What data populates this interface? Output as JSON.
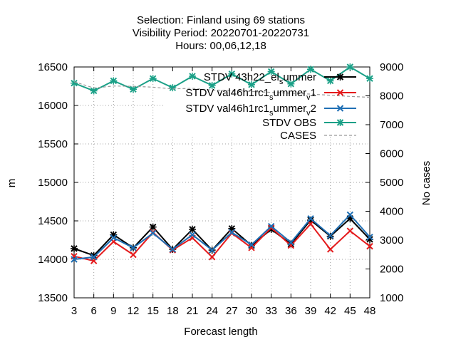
{
  "chart_data": {
    "type": "line",
    "title_lines": [
      "Selection: Finland using    69 stations",
      "Visibility   Period: 20220701-20220731",
      "Hours: 00,06,12,18"
    ],
    "xlabel": "Forecast length",
    "ylabel": "m",
    "y2label": "No cases",
    "x": [
      3,
      6,
      9,
      12,
      15,
      18,
      21,
      24,
      27,
      30,
      33,
      36,
      39,
      42,
      45,
      48
    ],
    "xlim": [
      3,
      48
    ],
    "ylim": [
      13500,
      16500
    ],
    "y2lim": [
      1000,
      9000
    ],
    "yticks": [
      13500,
      14000,
      14500,
      15000,
      15500,
      16000,
      16500
    ],
    "y2ticks": [
      1000,
      2000,
      3000,
      4000,
      5000,
      6000,
      7000,
      8000,
      9000
    ],
    "grid": true,
    "legend_position": "top-right",
    "series": [
      {
        "name": "STDV 43h22_el_summer",
        "legend": {
          "base": "STDV 43h22_el",
          "sub": "s",
          "rest": "ummer",
          "sub2": "",
          "rest2": ""
        },
        "color": "#000000",
        "marker": "star",
        "axis": "y",
        "values": [
          14140,
          14050,
          14320,
          14150,
          14420,
          14130,
          14390,
          14120,
          14400,
          14180,
          14390,
          14200,
          14510,
          14300,
          14530,
          14260
        ]
      },
      {
        "name": "STDV val46h1rc1_summer_v1",
        "legend": {
          "base": "STDV val46h1rc1",
          "sub": "s",
          "rest": "ummer",
          "sub2": "v",
          "rest2": "1"
        },
        "color": "#e41a1c",
        "marker": "x",
        "axis": "y",
        "values": [
          14040,
          13980,
          14230,
          14060,
          14350,
          14120,
          14280,
          14030,
          14340,
          14150,
          14410,
          14180,
          14460,
          14130,
          14370,
          14170
        ]
      },
      {
        "name": "STDV val46h1rc1_summer_v2",
        "legend": {
          "base": "STDV val46h1rc1",
          "sub": "s",
          "rest": "ummer",
          "sub2": "v",
          "rest2": "2"
        },
        "color": "#1f6fb4",
        "marker": "x",
        "axis": "y",
        "values": [
          14000,
          14030,
          14280,
          14150,
          14340,
          14130,
          14320,
          14120,
          14350,
          14190,
          14430,
          14220,
          14530,
          14310,
          14580,
          14290
        ]
      },
      {
        "name": "STDV OBS",
        "legend": {
          "base": "STDV OBS",
          "sub": "",
          "rest": "",
          "sub2": "",
          "rest2": ""
        },
        "color": "#1aa087",
        "marker": "star",
        "axis": "y",
        "values": [
          16290,
          16190,
          16320,
          16210,
          16350,
          16230,
          16380,
          16260,
          16410,
          16270,
          16440,
          16280,
          16470,
          16320,
          16500,
          16350
        ]
      },
      {
        "name": "CASES",
        "legend": {
          "base": "CASES",
          "sub": "",
          "rest": "",
          "sub2": "",
          "rest2": ""
        },
        "color": "#999999",
        "marker": "none",
        "dashed": true,
        "axis": "y2",
        "values": [
          8490,
          8270,
          8340,
          8330,
          8300,
          8240,
          8260,
          8200,
          8190,
          8150,
          8120,
          8090,
          8060,
          8020,
          7980,
          7950
        ]
      }
    ]
  }
}
